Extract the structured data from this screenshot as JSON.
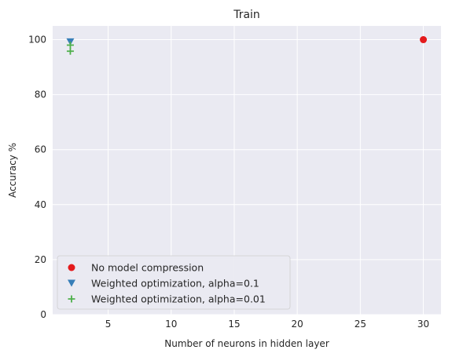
{
  "chart_data": {
    "type": "scatter",
    "title": "Train",
    "xlabel": "Number of neurons in hidden layer",
    "ylabel": "Accuracy %",
    "xlim": [
      0.6,
      31.4
    ],
    "ylim": [
      0,
      105
    ],
    "xticks": [
      5,
      10,
      15,
      20,
      25,
      30
    ],
    "yticks": [
      0,
      20,
      40,
      60,
      80,
      100
    ],
    "grid": true,
    "legend_position": "lower-left",
    "series": [
      {
        "name": "No model compression",
        "marker": "circle",
        "color": "#e41a1c",
        "points": [
          [
            30,
            100
          ]
        ]
      },
      {
        "name": "Weighted optimization, alpha=0.1",
        "marker": "triangle-down",
        "color": "#377eb8",
        "points": [
          [
            2,
            99.2
          ]
        ]
      },
      {
        "name": "Weighted optimization, alpha=0.01",
        "marker": "plus",
        "color": "#4daf4a",
        "points": [
          [
            2,
            98
          ],
          [
            2,
            95.8
          ]
        ]
      }
    ]
  }
}
